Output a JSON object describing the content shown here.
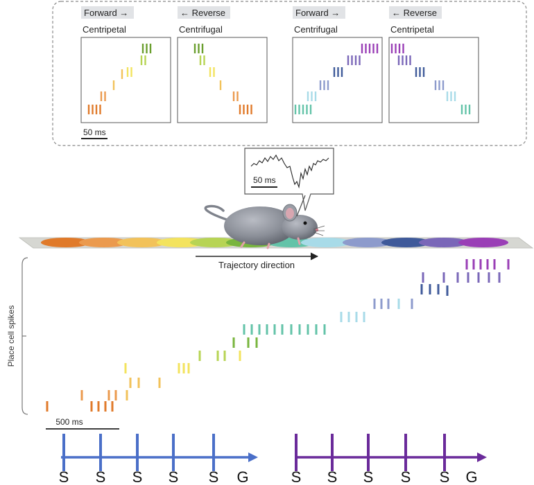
{
  "colors": {
    "track": [
      "#e07a2a",
      "#eb9a4e",
      "#f2c25a",
      "#f3e35e",
      "#b7d454",
      "#78b53e",
      "#63c3a8",
      "#a8dbe8",
      "#8d9bcc",
      "#3f5a9a",
      "#7a67b8",
      "#9a3fb6"
    ],
    "axis_blue": "#4a6fc8",
    "axis_purple": "#6a2a9a"
  },
  "sequence_panels": [
    {
      "tag": "Forward →",
      "label": "Centripetal"
    },
    {
      "tag": "← Reverse",
      "label": "Centrifugal"
    },
    {
      "tag": "Forward →",
      "label": "Centrifugal"
    },
    {
      "tag": "← Reverse",
      "label": "Centripetal"
    }
  ],
  "scalebars": {
    "inset": "50 ms",
    "lfp": "50 ms",
    "main": "500 ms"
  },
  "trajectory_label": "Trajectory direction",
  "y_axis_label": "Place cell spikes",
  "timeline_blue": [
    "S",
    "S",
    "S",
    "S",
    "S",
    "G"
  ],
  "timeline_purple": [
    "S",
    "S",
    "S",
    "S",
    "S",
    "G"
  ]
}
